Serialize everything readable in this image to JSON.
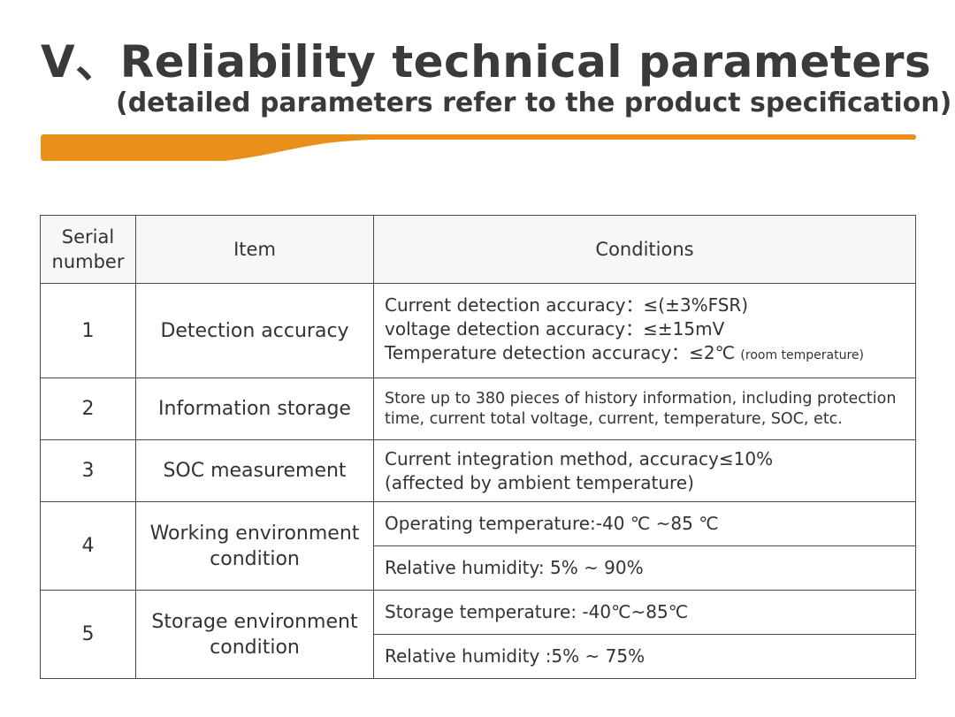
{
  "heading": {
    "title": "V、Reliability technical parameters",
    "subtitle": "(detailed parameters refer to the product specification)"
  },
  "colors": {
    "accent": "#E8901A",
    "border": "#4A4A4A",
    "header_bg": "#F7F7F7",
    "text": "#333333"
  },
  "table": {
    "headers": {
      "serial": "Serial number",
      "item": "Item",
      "conditions": "Conditions"
    },
    "rows": [
      {
        "num": "1",
        "item": "Detection accuracy",
        "conditions": [
          "Current detection accuracy：≤(±3%FSR)",
          "voltage detection accuracy：≤±15mV",
          "Temperature detection accuracy：≤2℃"
        ],
        "note": "(room temperature)"
      },
      {
        "num": "2",
        "item": "Information storage",
        "conditions": [
          "Store up to 380 pieces of history information, including protection time, current total voltage, current, temperature, SOC, etc."
        ]
      },
      {
        "num": "3",
        "item": "SOC measurement",
        "conditions": [
          "Current integration method, accuracy≤10%",
          "(affected by ambient temperature)"
        ]
      },
      {
        "num": "4",
        "item": "Working environment condition",
        "conditions": [
          "Operating temperature:-40 ℃ ~85 ℃",
          "Relative humidity: 5% ~ 90%"
        ]
      },
      {
        "num": "5",
        "item": "Storage environment condition",
        "conditions": [
          "Storage temperature: -40℃~85℃",
          "Relative humidity :5% ~ 75%"
        ]
      }
    ]
  }
}
